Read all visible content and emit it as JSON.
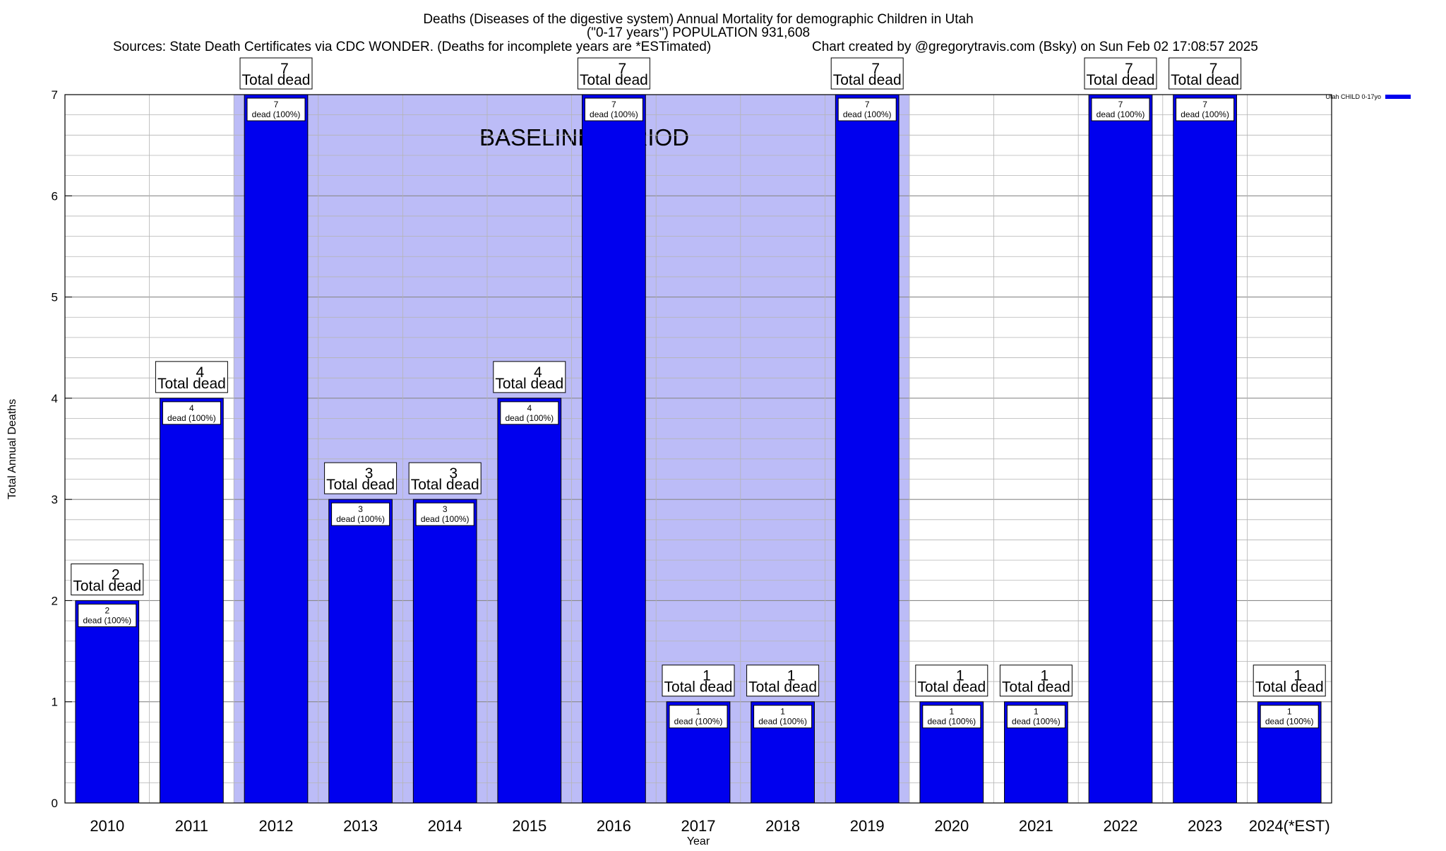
{
  "chart_data": {
    "type": "bar",
    "title_lines": [
      "Deaths (Diseases of the digestive system) Annual Mortality for demographic Children in Utah",
      "(\"0-17 years\") POPULATION 931,608"
    ],
    "sources_text": "Sources: State Death Certificates via CDC WONDER. (Deaths for incomplete years are *ESTimated)",
    "credit_text": "Chart created by @gregorytravis.com (Bsky) on Sun Feb 02 17:08:57 2025",
    "xlabel": "Year",
    "ylabel": "Total Annual Deaths",
    "ylim": [
      0,
      7
    ],
    "y_ticks": [
      0,
      1,
      2,
      3,
      4,
      5,
      6,
      7
    ],
    "y_minor_step": 0.2,
    "grid": true,
    "categories": [
      "2010",
      "2011",
      "2012",
      "2013",
      "2014",
      "2015",
      "2016",
      "2017",
      "2018",
      "2019",
      "2020",
      "2021",
      "2022",
      "2023",
      "2024(*EST)"
    ],
    "series": [
      {
        "name": "Utah CHILD 0-17yo",
        "color": "#0000ee",
        "values": [
          2,
          4,
          7,
          3,
          3,
          4,
          7,
          1,
          1,
          7,
          1,
          1,
          7,
          7,
          1
        ]
      }
    ],
    "total_label_suffix": "Total dead",
    "inner_label_suffix": "dead (100%)",
    "baseline": {
      "label": "BASELINE PERIOD",
      "start_category": "2012",
      "end_category": "2019",
      "color": "#bcbcf7"
    },
    "legend_placement": "top-right"
  }
}
